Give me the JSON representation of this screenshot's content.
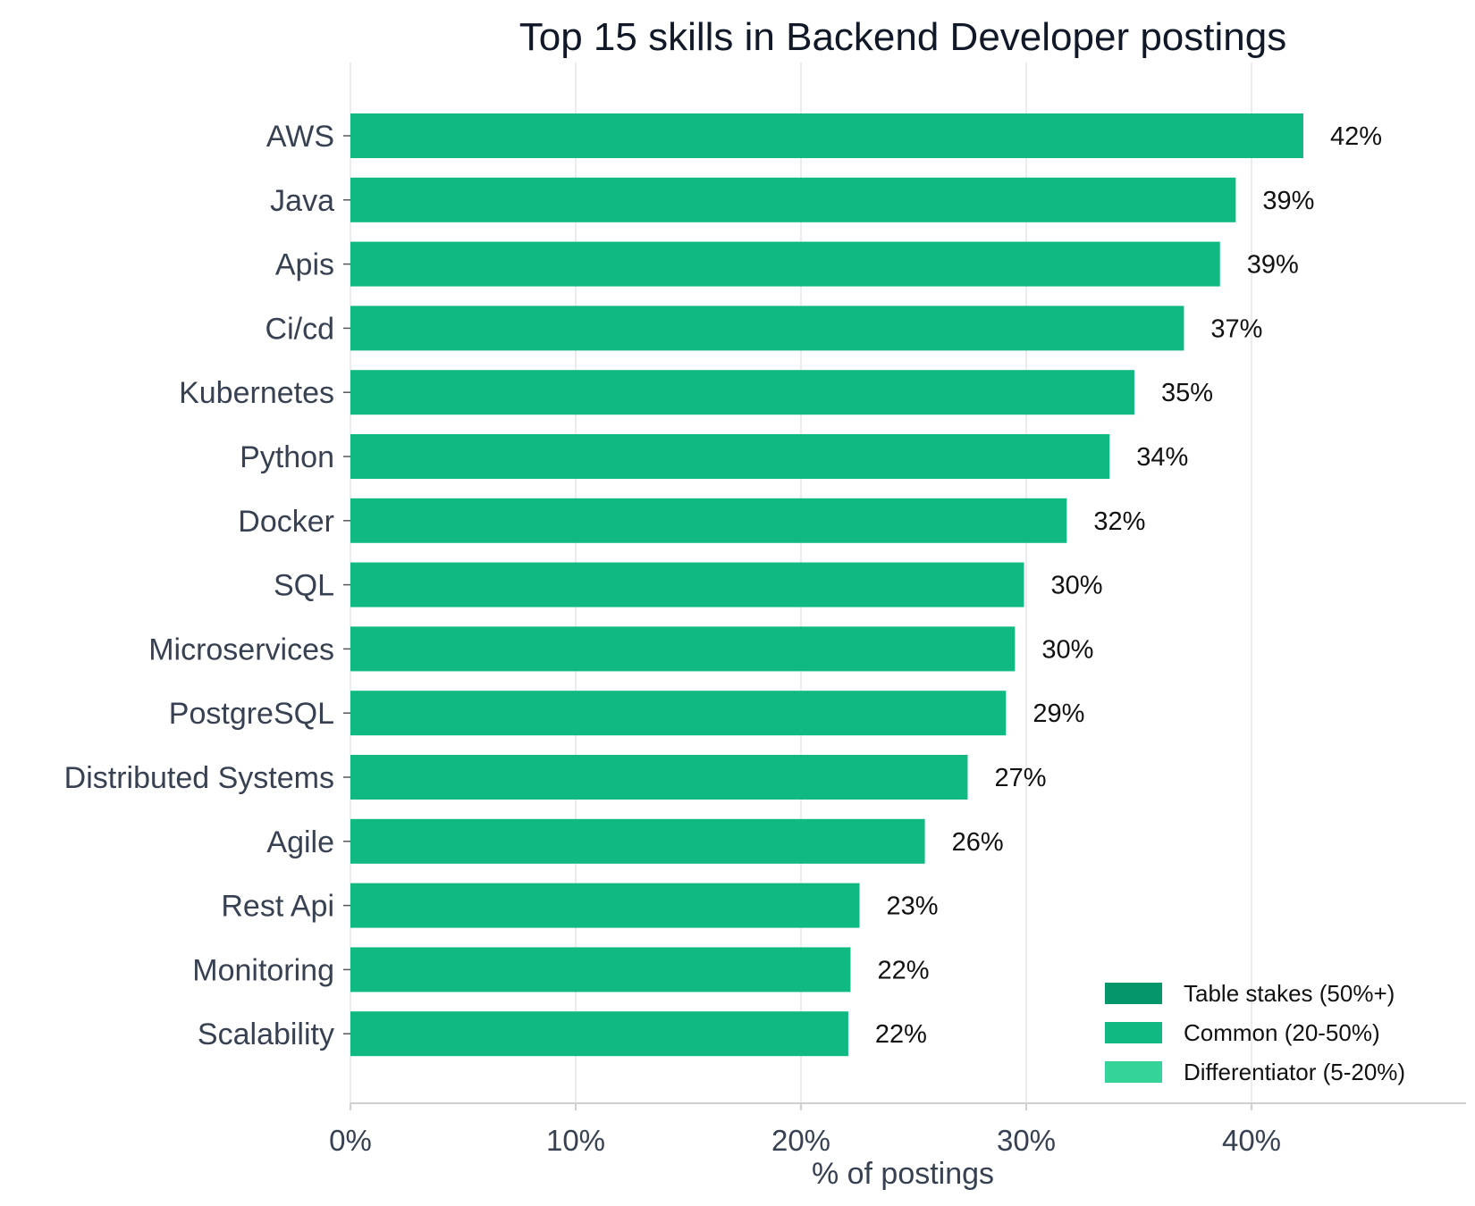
{
  "chart_data": {
    "type": "bar",
    "orientation": "horizontal",
    "title": "Top 15 skills in Backend Developer postings",
    "xlabel": "% of postings",
    "ylabel": "",
    "xlim": [
      0,
      50
    ],
    "xticks": [
      0,
      10,
      20,
      30,
      40
    ],
    "tick_format": "{v}%",
    "grid": "vertical",
    "legend_position": "bottom-right",
    "categories": [
      "AWS",
      "Java",
      "Apis",
      "Ci/cd",
      "Kubernetes",
      "Python",
      "Docker",
      "SQL",
      "Microservices",
      "PostgreSQL",
      "Distributed Systems",
      "Agile",
      "Rest Api",
      "Monitoring",
      "Scalability"
    ],
    "values": [
      42.3,
      39.3,
      38.6,
      37.0,
      34.8,
      33.7,
      31.8,
      29.9,
      29.5,
      29.1,
      27.4,
      25.5,
      22.6,
      22.2,
      22.1
    ],
    "value_labels": [
      "42%",
      "39%",
      "39%",
      "37%",
      "35%",
      "34%",
      "32%",
      "30%",
      "30%",
      "29%",
      "27%",
      "26%",
      "23%",
      "22%",
      "22%"
    ],
    "series": [
      {
        "name": "Table stakes (50%+)",
        "color": "#059669"
      },
      {
        "name": "Common (20-50%)",
        "color": "#10b981"
      },
      {
        "name": "Differentiator (5-20%)",
        "color": "#34d399"
      }
    ],
    "bar_color": "#10b981",
    "colors": {
      "grid": "#ececec",
      "axis": "#d0d0d0"
    }
  }
}
